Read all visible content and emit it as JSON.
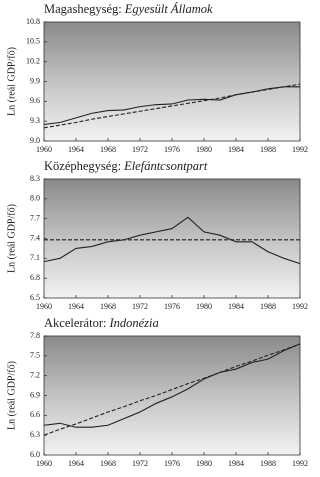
{
  "chart_data": [
    {
      "type": "line",
      "title": "Magashegység:",
      "country": "Egyesült Államok",
      "ylabel": "Ln (reál GDP/fő)",
      "x": [
        1960,
        1962,
        1964,
        1966,
        1968,
        1970,
        1972,
        1974,
        1976,
        1978,
        1980,
        1982,
        1984,
        1986,
        1988,
        1990,
        1992
      ],
      "series": [
        {
          "color": "#222222",
          "style": "solid",
          "values": [
            9.25,
            9.28,
            9.35,
            9.42,
            9.46,
            9.47,
            9.52,
            9.55,
            9.56,
            9.62,
            9.63,
            9.62,
            9.7,
            9.74,
            9.79,
            9.82,
            9.82
          ]
        },
        {
          "color": "#222222",
          "style": "dashed",
          "values": [
            9.2,
            9.24,
            9.28,
            9.33,
            9.37,
            9.41,
            9.45,
            9.49,
            9.53,
            9.57,
            9.61,
            9.65,
            9.7,
            9.74,
            9.78,
            9.82,
            9.86
          ]
        }
      ],
      "xlim": [
        1960,
        1992
      ],
      "xticks": [
        1960,
        1964,
        1968,
        1972,
        1976,
        1980,
        1984,
        1988,
        1992
      ],
      "ylim": [
        9.0,
        10.8
      ],
      "yticks": [
        {
          "value": 9,
          "label": "9.0"
        },
        9.3,
        9.6,
        9.9,
        10.2,
        10.5,
        10.8
      ]
    },
    {
      "type": "line",
      "title": "Középhegység:",
      "country": "Elefántcsontpart",
      "ylabel": "Ln (reál GDP/fő)",
      "x": [
        1960,
        1962,
        1964,
        1966,
        1968,
        1970,
        1972,
        1974,
        1976,
        1978,
        1980,
        1982,
        1984,
        1986,
        1988,
        1990,
        1992
      ],
      "series": [
        {
          "color": "#222222",
          "style": "solid",
          "values": [
            7.05,
            7.1,
            7.25,
            7.28,
            7.35,
            7.38,
            7.45,
            7.5,
            7.55,
            7.72,
            7.5,
            7.45,
            7.35,
            7.35,
            7.2,
            7.1,
            7.02
          ]
        },
        {
          "color": "#222222",
          "style": "dashed",
          "values": [
            7.38,
            7.38,
            7.38,
            7.38,
            7.38,
            7.38,
            7.38,
            7.38,
            7.38,
            7.38,
            7.38,
            7.38,
            7.38,
            7.38,
            7.38,
            7.38,
            7.38
          ]
        }
      ],
      "xlim": [
        1960,
        1992
      ],
      "xticks": [
        1960,
        1964,
        1968,
        1972,
        1976,
        1980,
        1984,
        1988,
        1992
      ],
      "ylim": [
        6.5,
        8.3
      ],
      "yticks": [
        6.5,
        6.8,
        7.1,
        7.4,
        7.7,
        {
          "value": 8,
          "label": "8.0"
        },
        8.3
      ]
    },
    {
      "type": "line",
      "title": "Akcelerátor:",
      "country": "Indonézia",
      "ylabel": "Ln (reál GDP/fő)",
      "x": [
        1960,
        1962,
        1964,
        1966,
        1968,
        1970,
        1972,
        1974,
        1976,
        1978,
        1980,
        1982,
        1984,
        1986,
        1988,
        1990,
        1992
      ],
      "series": [
        {
          "color": "#222222",
          "style": "solid",
          "values": [
            6.45,
            6.48,
            6.42,
            6.42,
            6.45,
            6.55,
            6.65,
            6.78,
            6.88,
            7.0,
            7.15,
            7.25,
            7.3,
            7.4,
            7.45,
            7.58,
            7.68
          ]
        },
        {
          "color": "#222222",
          "style": "dashed",
          "values": [
            6.3,
            6.39,
            6.47,
            6.56,
            6.65,
            6.73,
            6.82,
            6.9,
            6.99,
            7.08,
            7.16,
            7.25,
            7.34,
            7.42,
            7.51,
            7.59,
            7.68
          ]
        }
      ],
      "xlim": [
        1960,
        1992
      ],
      "xticks": [
        1960,
        1964,
        1968,
        1972,
        1976,
        1980,
        1984,
        1988,
        1992
      ],
      "ylim": [
        6.0,
        7.8
      ],
      "yticks": [
        {
          "value": 6,
          "label": "6.0"
        },
        6.3,
        6.6,
        6.9,
        7.2,
        7.5,
        7.8
      ]
    }
  ]
}
